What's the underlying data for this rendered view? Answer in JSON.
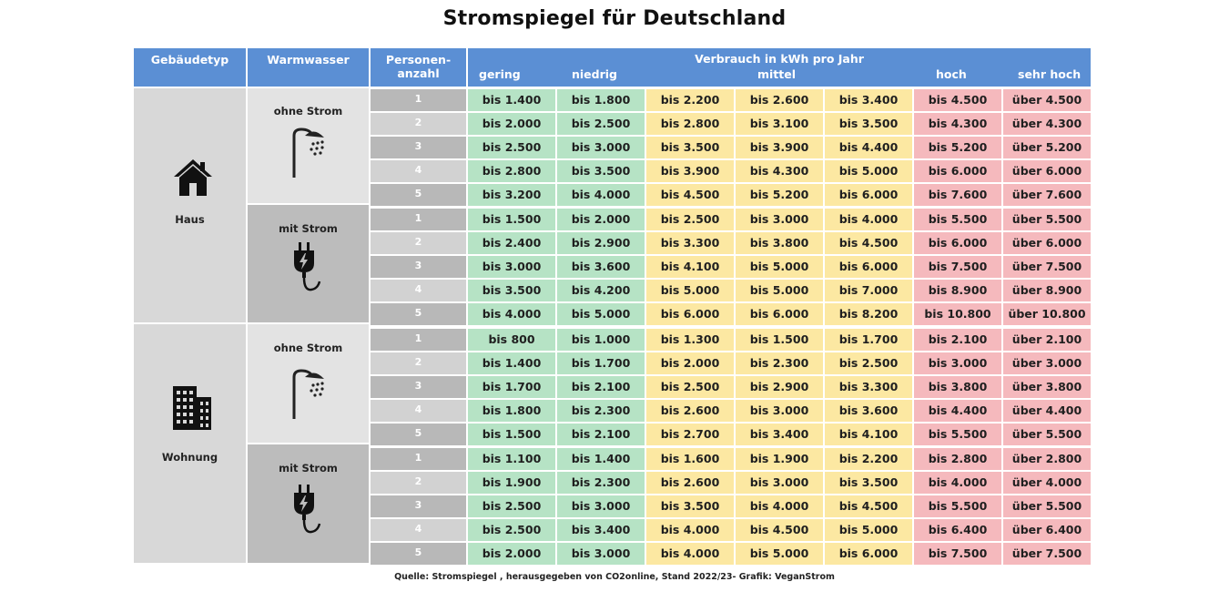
{
  "title": "Stromspiegel für Deutschland",
  "header": {
    "building_type": "Gebäudetyp",
    "hot_water": "Warmwasser",
    "persons_line1": "Personen-",
    "persons_line2": "anzahl",
    "consumption": "Verbrauch in kWh pro Jahr",
    "categories": [
      "gering",
      "niedrig",
      "mittel",
      "hoch",
      "sehr hoch"
    ]
  },
  "colors": {
    "header": "#5b8fd4",
    "green": "#b6e3c5",
    "yellow": "#fce8a2",
    "red": "#f5b9bd"
  },
  "groups": [
    {
      "building": "Haus",
      "building_icon": "house-icon",
      "subgroups": [
        {
          "hot_water": "ohne Strom",
          "icon": "shower-icon",
          "rows": [
            {
              "persons": "1",
              "values": [
                "bis 1.400",
                "bis 1.800",
                "bis 2.200",
                "bis 2.600",
                "bis 3.400",
                "bis 4.500",
                "über 4.500"
              ]
            },
            {
              "persons": "2",
              "values": [
                "bis 2.000",
                "bis 2.500",
                "bis 2.800",
                "bis 3.100",
                "bis 3.500",
                "bis 4.300",
                "über 4.300"
              ]
            },
            {
              "persons": "3",
              "values": [
                "bis 2.500",
                "bis 3.000",
                "bis 3.500",
                "bis 3.900",
                "bis 4.400",
                "bis 5.200",
                "über 5.200"
              ]
            },
            {
              "persons": "4",
              "values": [
                "bis 2.800",
                "bis 3.500",
                "bis 3.900",
                "bis 4.300",
                "bis 5.000",
                "bis 6.000",
                "über 6.000"
              ]
            },
            {
              "persons": "5",
              "values": [
                "bis 3.200",
                "bis 4.000",
                "bis 4.500",
                "bis 5.200",
                "bis 6.000",
                "bis 7.600",
                "über 7.600"
              ]
            }
          ]
        },
        {
          "hot_water": "mit Strom",
          "icon": "plug-icon",
          "rows": [
            {
              "persons": "1",
              "values": [
                "bis 1.500",
                "bis 2.000",
                "bis 2.500",
                "bis 3.000",
                "bis 4.000",
                "bis 5.500",
                "über 5.500"
              ]
            },
            {
              "persons": "2",
              "values": [
                "bis 2.400",
                "bis 2.900",
                "bis 3.300",
                "bis 3.800",
                "bis 4.500",
                "bis 6.000",
                "über 6.000"
              ]
            },
            {
              "persons": "3",
              "values": [
                "bis 3.000",
                "bis 3.600",
                "bis 4.100",
                "bis 5.000",
                "bis 6.000",
                "bis 7.500",
                "über 7.500"
              ]
            },
            {
              "persons": "4",
              "values": [
                "bis 3.500",
                "bis 4.200",
                "bis 5.000",
                "bis 5.000",
                "bis 7.000",
                "bis 8.900",
                "über 8.900"
              ]
            },
            {
              "persons": "5",
              "values": [
                "bis 4.000",
                "bis 5.000",
                "bis 6.000",
                "bis 6.000",
                "bis 8.200",
                "bis 10.800",
                "über 10.800"
              ]
            }
          ]
        }
      ]
    },
    {
      "building": "Wohnung",
      "building_icon": "apartment-building-icon",
      "subgroups": [
        {
          "hot_water": "ohne Strom",
          "icon": "shower-icon",
          "rows": [
            {
              "persons": "1",
              "values": [
                "bis 800",
                "bis 1.000",
                "bis 1.300",
                "bis 1.500",
                "bis 1.700",
                "bis 2.100",
                "über 2.100"
              ]
            },
            {
              "persons": "2",
              "values": [
                "bis 1.400",
                "bis 1.700",
                "bis 2.000",
                "bis 2.300",
                "bis 2.500",
                "bis 3.000",
                "über 3.000"
              ]
            },
            {
              "persons": "3",
              "values": [
                "bis 1.700",
                "bis 2.100",
                "bis 2.500",
                "bis 2.900",
                "bis 3.300",
                "bis 3.800",
                "über 3.800"
              ]
            },
            {
              "persons": "4",
              "values": [
                "bis 1.800",
                "bis 2.300",
                "bis 2.600",
                "bis 3.000",
                "bis 3.600",
                "bis 4.400",
                "über 4.400"
              ]
            },
            {
              "persons": "5",
              "values": [
                "bis 1.500",
                "bis 2.100",
                "bis 2.700",
                "bis 3.400",
                "bis 4.100",
                "bis 5.500",
                "über 5.500"
              ]
            }
          ]
        },
        {
          "hot_water": "mit Strom",
          "icon": "plug-icon",
          "rows": [
            {
              "persons": "1",
              "values": [
                "bis 1.100",
                "bis 1.400",
                "bis 1.600",
                "bis 1.900",
                "bis 2.200",
                "bis 2.800",
                "über 2.800"
              ]
            },
            {
              "persons": "2",
              "values": [
                "bis 1.900",
                "bis 2.300",
                "bis 2.600",
                "bis 3.000",
                "bis 3.500",
                "bis 4.000",
                "über 4.000"
              ]
            },
            {
              "persons": "3",
              "values": [
                "bis 2.500",
                "bis 3.000",
                "bis 3.500",
                "bis 4.000",
                "bis 4.500",
                "bis 5.500",
                "über 5.500"
              ]
            },
            {
              "persons": "4",
              "values": [
                "bis 2.500",
                "bis 3.400",
                "bis 4.000",
                "bis 4.500",
                "bis 5.000",
                "bis 6.400",
                "über 6.400"
              ]
            },
            {
              "persons": "5",
              "values": [
                "bis 2.000",
                "bis 3.000",
                "bis 4.000",
                "bis 5.000",
                "bis 6.000",
                "bis 7.500",
                "über 7.500"
              ]
            }
          ]
        }
      ]
    }
  ],
  "source": "Quelle: Stromspiegel , herausgegeben von CO2online, Stand 2022/23- Grafik: VeganStrom"
}
